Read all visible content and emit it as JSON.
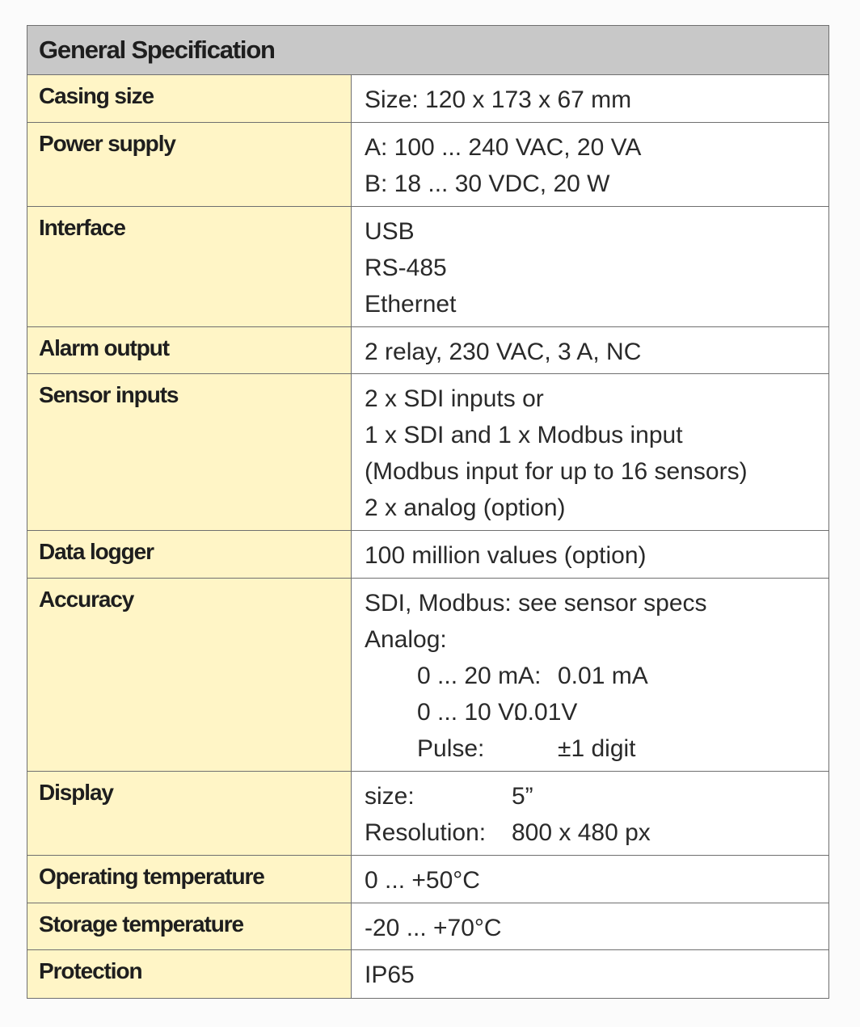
{
  "title": "General Specification",
  "rows": [
    {
      "label": "Casing size",
      "lines": [
        {
          "text": "Size: 120 x 173 x 67 mm"
        }
      ]
    },
    {
      "label": "Power supply",
      "lines": [
        {
          "text": "A: 100 ... 240 VAC, 20 VA"
        },
        {
          "text": "B: 18 ... 30 VDC, 20 W"
        }
      ]
    },
    {
      "label": "Interface",
      "lines": [
        {
          "text": "USB"
        },
        {
          "text": "RS-485"
        },
        {
          "text": "Ethernet"
        }
      ]
    },
    {
      "label": "Alarm output",
      "lines": [
        {
          "text": "2 relay, 230 VAC, 3 A, NC"
        }
      ]
    },
    {
      "label": "Sensor inputs",
      "lines": [
        {
          "text": "2 x SDI inputs or"
        },
        {
          "text": "1 x SDI and 1 x Modbus input"
        },
        {
          "text": "(Modbus input for up to 16 sensors)"
        },
        {
          "text": "2 x analog (option)"
        }
      ]
    },
    {
      "label": "Data logger",
      "lines": [
        {
          "text": "100 million values (option)"
        }
      ]
    },
    {
      "label": "Accuracy",
      "lines": [
        {
          "text": "SDI, Modbus: see sensor specs"
        },
        {
          "text": "Analog:"
        },
        {
          "key": "0 ... 20 mA:",
          "value": "0.01 mA"
        },
        {
          "key": "0 ... 10 V:",
          "value": "0.01V"
        },
        {
          "key": "Pulse:",
          "value": "±1 digit"
        }
      ]
    },
    {
      "label": "Display",
      "lines": [
        {
          "key": "size:",
          "value": "5”"
        },
        {
          "key": "Resolution:",
          "value": "800 x 480 px"
        }
      ]
    },
    {
      "label": "Operating temperature",
      "lines": [
        {
          "text": "0 ... +50°C"
        }
      ]
    },
    {
      "label": "Storage temperature",
      "lines": [
        {
          "text": "-20 ... +70°C"
        }
      ]
    },
    {
      "label": "Protection",
      "lines": [
        {
          "text": "IP65"
        }
      ]
    }
  ]
}
